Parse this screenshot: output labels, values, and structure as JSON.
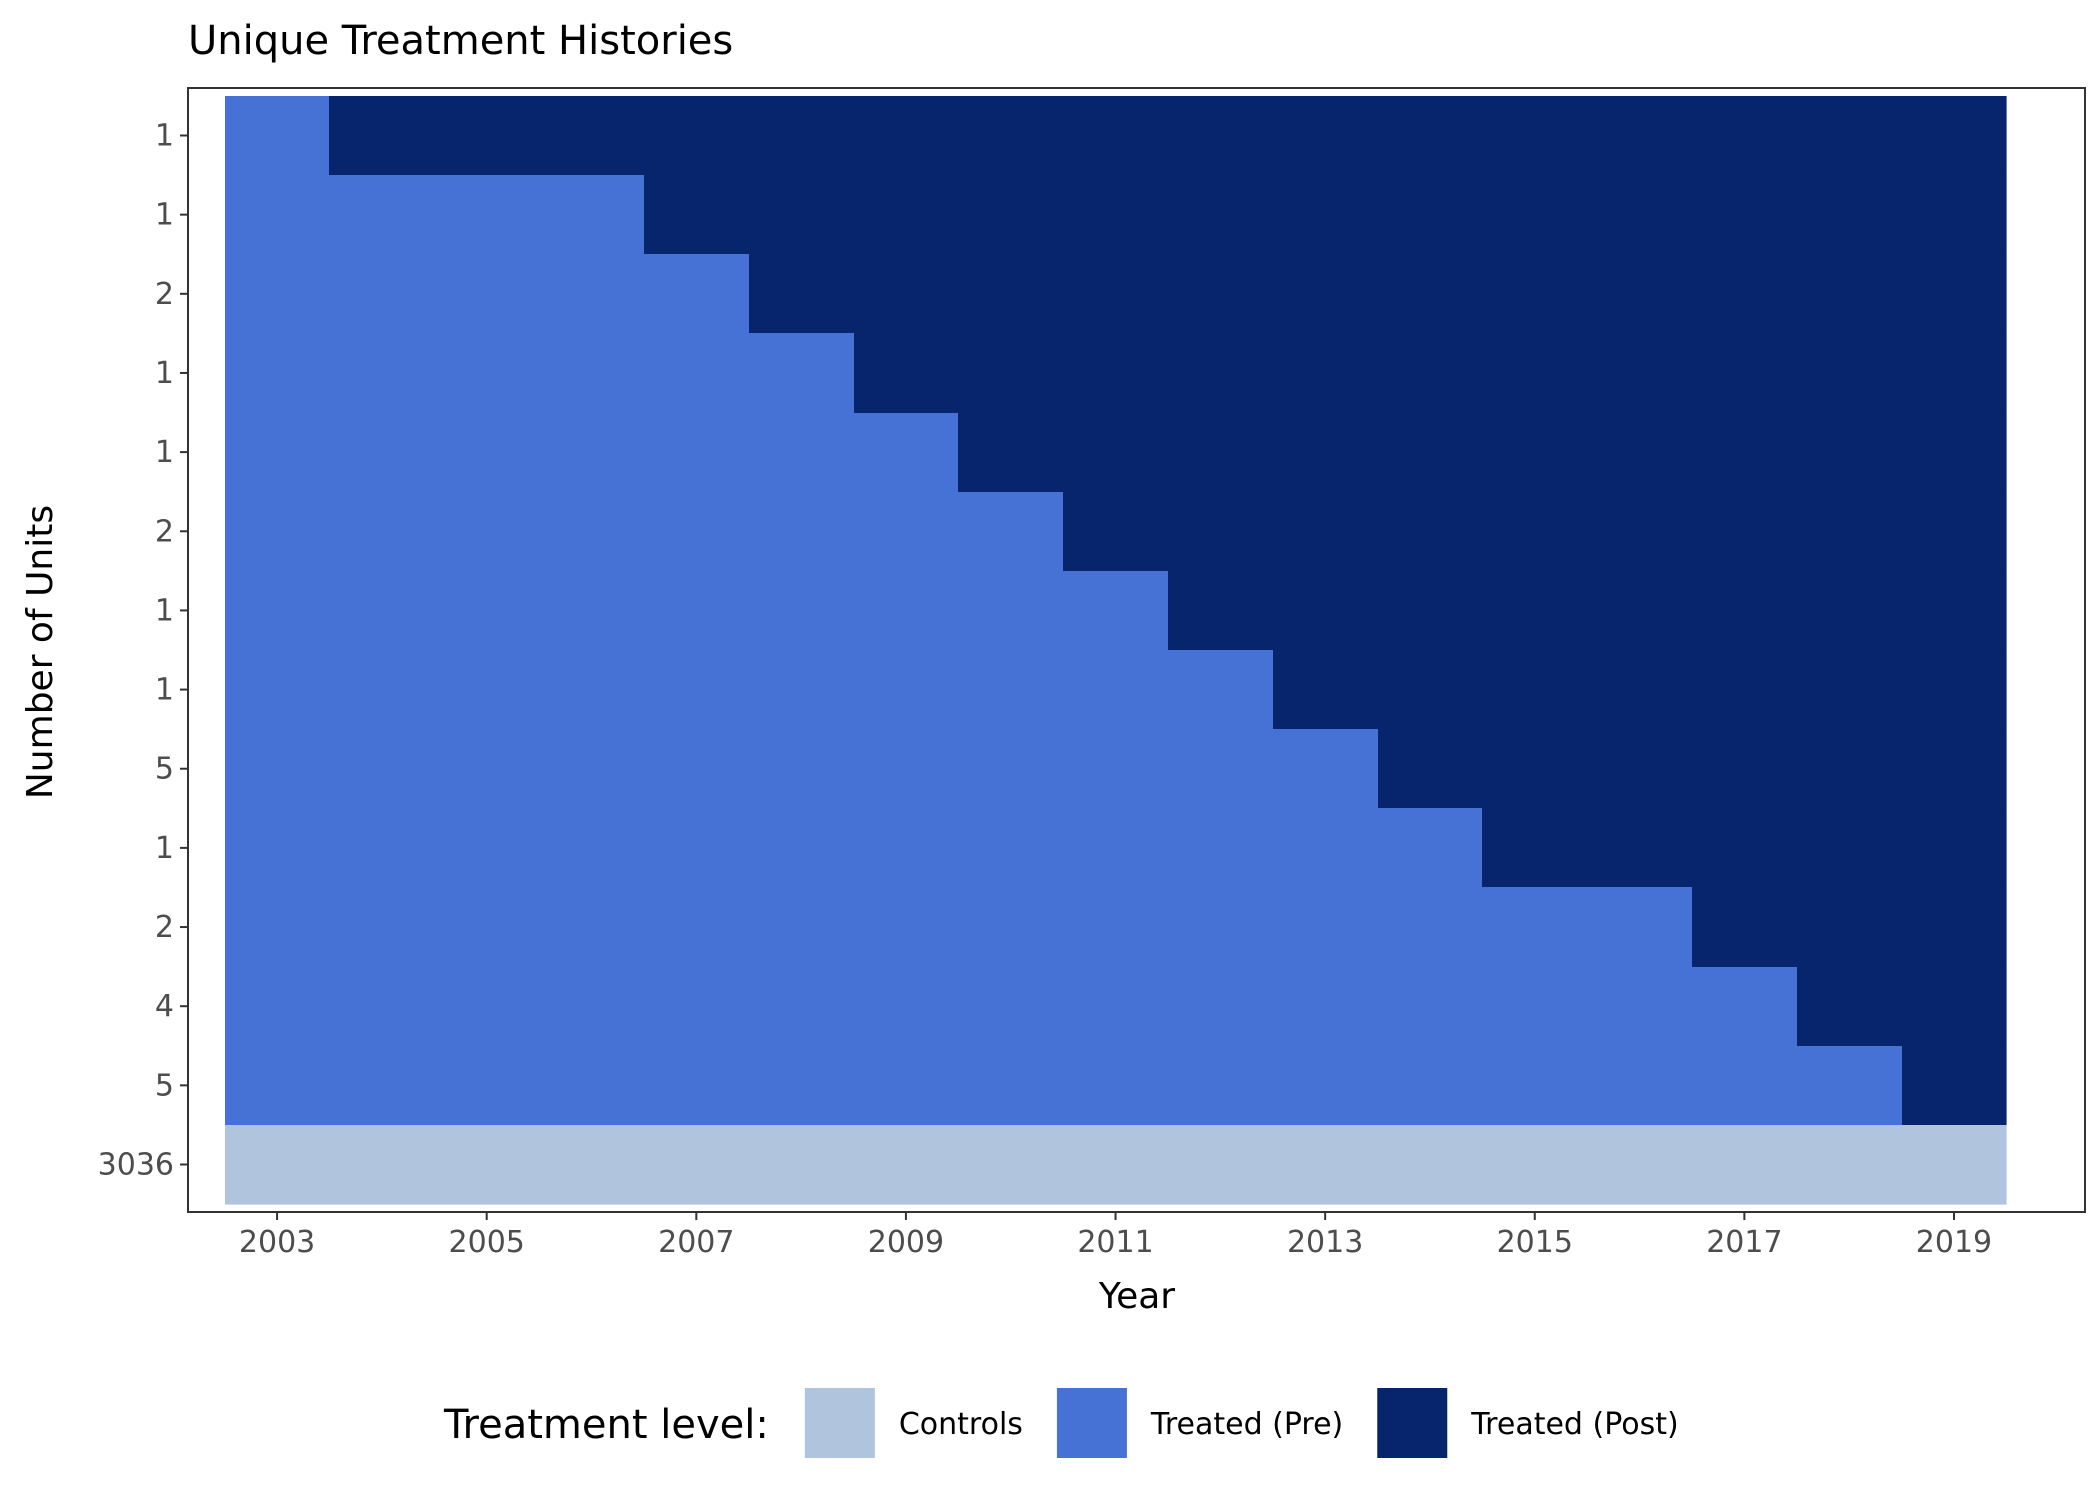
{
  "chart_data": {
    "type": "heatmap",
    "title": "Unique Treatment Histories",
    "xlabel": "Year",
    "ylabel": "Number of Units",
    "years": [
      2003,
      2004,
      2005,
      2006,
      2007,
      2008,
      2009,
      2010,
      2011,
      2012,
      2013,
      2014,
      2015,
      2016,
      2017,
      2018,
      2019
    ],
    "x_ticks": [
      "2003",
      "2005",
      "2007",
      "2009",
      "2011",
      "2013",
      "2015",
      "2017",
      "2019"
    ],
    "xlim": [
      2002.15,
      2020.25
    ],
    "rows": [
      {
        "label": "1",
        "first_treated_year": 2004
      },
      {
        "label": "1",
        "first_treated_year": 2007
      },
      {
        "label": "2",
        "first_treated_year": 2008
      },
      {
        "label": "1",
        "first_treated_year": 2009
      },
      {
        "label": "1",
        "first_treated_year": 2010
      },
      {
        "label": "2",
        "first_treated_year": 2011
      },
      {
        "label": "1",
        "first_treated_year": 2012
      },
      {
        "label": "1",
        "first_treated_year": 2013
      },
      {
        "label": "5",
        "first_treated_year": 2014
      },
      {
        "label": "1",
        "first_treated_year": 2015
      },
      {
        "label": "2",
        "first_treated_year": 2017
      },
      {
        "label": "4",
        "first_treated_year": 2018
      },
      {
        "label": "5",
        "first_treated_year": 2019
      },
      {
        "label": "3036",
        "first_treated_year": null
      }
    ],
    "legend": {
      "title": "Treatment level:",
      "position": "bottom",
      "entries": [
        {
          "label": "Controls",
          "color": "#b0c4de"
        },
        {
          "label": "Treated (Pre)",
          "color": "#4672d6"
        },
        {
          "label": "Treated (Post)",
          "color": "#06256c"
        }
      ]
    },
    "grid": false
  }
}
